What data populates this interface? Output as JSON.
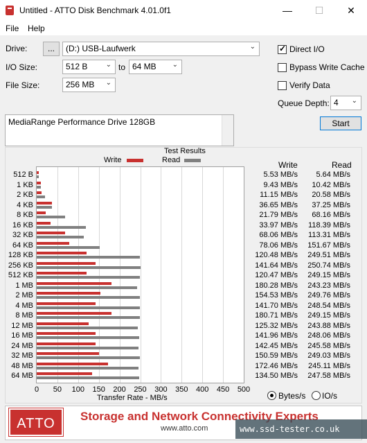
{
  "window": {
    "title": "Untitled - ATTO Disk Benchmark 4.01.0f1",
    "minimize": "—",
    "maximize": "☐",
    "close": "✕"
  },
  "menu": {
    "file": "File",
    "help": "Help"
  },
  "controls": {
    "drive_label": "Drive:",
    "browse_label": "...",
    "drive_value": "(D:) USB-Laufwerk",
    "io_size_label": "I/O Size:",
    "io_from": "512 B",
    "io_to_label": "to",
    "io_to": "64 MB",
    "file_size_label": "File Size:",
    "file_size": "256 MB",
    "direct_io_label": "Direct I/O",
    "direct_io_checked": true,
    "bypass_cache_label": "Bypass Write Cache",
    "bypass_cache_checked": false,
    "verify_label": "Verify Data",
    "verify_checked": false,
    "queue_depth_label": "Queue Depth:",
    "queue_depth": "4",
    "start_label": "Start",
    "description": "MediaRange Performance Drive 128GB"
  },
  "results": {
    "title": "Test Results",
    "legend_write": "Write",
    "legend_read": "Read",
    "col_write": "Write",
    "col_read": "Read",
    "xlabel": "Transfer Rate - MB/s",
    "unit_bytes": "Bytes/s",
    "unit_io": "IO/s",
    "unit_selected": "Bytes/s"
  },
  "chart_data": {
    "type": "bar",
    "orientation": "horizontal",
    "xlim": [
      0,
      500
    ],
    "xticks": [
      "0",
      "50",
      "100",
      "150",
      "200",
      "250",
      "300",
      "350",
      "400",
      "450",
      "500"
    ],
    "categories": [
      "512 B",
      "1 KB",
      "2 KB",
      "4 KB",
      "8 KB",
      "16 KB",
      "32 KB",
      "64 KB",
      "128 KB",
      "256 KB",
      "512 KB",
      "1 MB",
      "2 MB",
      "4 MB",
      "8 MB",
      "12 MB",
      "16 MB",
      "24 MB",
      "32 MB",
      "48 MB",
      "64 MB"
    ],
    "series": [
      {
        "name": "Write",
        "color": "#c8312f",
        "values": [
          5.53,
          9.43,
          11.15,
          36.65,
          21.79,
          33.97,
          68.06,
          78.06,
          120.48,
          141.64,
          120.47,
          180.28,
          154.53,
          141.7,
          180.71,
          125.32,
          141.96,
          142.45,
          150.59,
          172.46,
          134.5
        ],
        "labels": [
          "5.53 MB/s",
          "9.43 MB/s",
          "11.15 MB/s",
          "36.65 MB/s",
          "21.79 MB/s",
          "33.97 MB/s",
          "68.06 MB/s",
          "78.06 MB/s",
          "120.48 MB/s",
          "141.64 MB/s",
          "120.47 MB/s",
          "180.28 MB/s",
          "154.53 MB/s",
          "141.70 MB/s",
          "180.71 MB/s",
          "125.32 MB/s",
          "141.96 MB/s",
          "142.45 MB/s",
          "150.59 MB/s",
          "172.46 MB/s",
          "134.50 MB/s"
        ]
      },
      {
        "name": "Read",
        "color": "#808080",
        "values": [
          5.64,
          10.42,
          20.58,
          37.25,
          68.16,
          118.39,
          113.31,
          151.67,
          249.51,
          250.74,
          249.15,
          243.23,
          249.76,
          248.54,
          249.15,
          243.88,
          248.06,
          245.58,
          249.03,
          245.11,
          247.58
        ],
        "labels": [
          "5.64 MB/s",
          "10.42 MB/s",
          "20.58 MB/s",
          "37.25 MB/s",
          "68.16 MB/s",
          "118.39 MB/s",
          "113.31 MB/s",
          "151.67 MB/s",
          "249.51 MB/s",
          "250.74 MB/s",
          "249.15 MB/s",
          "243.23 MB/s",
          "249.76 MB/s",
          "248.54 MB/s",
          "249.15 MB/s",
          "243.88 MB/s",
          "248.06 MB/s",
          "245.58 MB/s",
          "249.03 MB/s",
          "245.11 MB/s",
          "247.58 MB/s"
        ]
      }
    ]
  },
  "banner": {
    "logo": "ATTO",
    "tagline": "Storage and Network Connectivity Experts",
    "website": "www.atto.com",
    "watermark": "www.ssd-tester.co.uk"
  }
}
